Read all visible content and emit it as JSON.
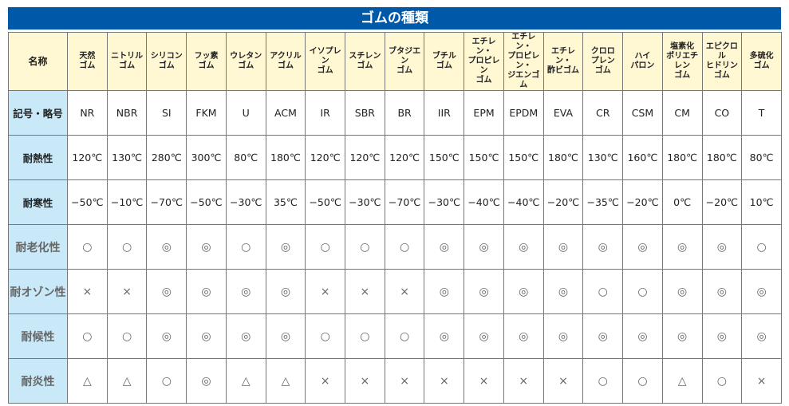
{
  "title": "ゴムの種類",
  "row_labels": [
    "名称",
    "記号・略号",
    "耐熱性",
    "耐寒性",
    "耐老化性",
    "耐オゾン性",
    "耐候性",
    "耐炎性"
  ],
  "names": [
    "天然\nゴム",
    "ニトリル\nゴム",
    "シリコン\nゴム",
    "フッ素\nゴム",
    "ウレタン\nゴム",
    "アクリル\nゴム",
    "イソプレン\nゴム",
    "スチレン\nゴム",
    "ブタジエン\nゴム",
    "ブチル\nゴム",
    "エチレン・\nプロピレン\nゴム",
    "エチレン・\nプロピレン・\nジエンゴム",
    "エチレン・\n酢ビゴム",
    "クロロ\nプレン\nゴム",
    "ハイ\nパロン",
    "塩素化\nポリエチレン\nゴム",
    "エピクロル\nヒドリン\nゴム",
    "多硫化\nゴム"
  ],
  "codes": [
    "NR",
    "NBR",
    "SI",
    "FKM",
    "U",
    "ACM",
    "IR",
    "SBR",
    "BR",
    "IIR",
    "EPM",
    "EPDM",
    "EVA",
    "CR",
    "CSM",
    "CM",
    "CO",
    "T"
  ],
  "heat": [
    "120℃",
    "130℃",
    "280℃",
    "300℃",
    "80℃",
    "180℃",
    "120℃",
    "120℃",
    "120℃",
    "150℃",
    "150℃",
    "150℃",
    "180℃",
    "130℃",
    "160℃",
    "180℃",
    "180℃",
    "80℃"
  ],
  "cold": [
    "−50℃",
    "−10℃",
    "−70℃",
    "−50℃",
    "−30℃",
    "35℃",
    "−50℃",
    "−30℃",
    "−70℃",
    "−30℃",
    "−40℃",
    "−40℃",
    "−20℃",
    "−35℃",
    "−20℃",
    "0℃",
    "−20℃",
    "10℃"
  ],
  "aging": [
    "○",
    "○",
    "◎",
    "◎",
    "○",
    "◎",
    "○",
    "○",
    "○",
    "◎",
    "◎",
    "◎",
    "◎",
    "◎",
    "◎",
    "◎",
    "◎",
    "○"
  ],
  "ozone": [
    "×",
    "×",
    "◎",
    "◎",
    "◎",
    "◎",
    "×",
    "×",
    "×",
    "◎",
    "◎",
    "◎",
    "◎",
    "○",
    "○",
    "◎",
    "◎",
    "◎"
  ],
  "weather": [
    "○",
    "○",
    "◎",
    "◎",
    "◎",
    "◎",
    "○",
    "○",
    "○",
    "◎",
    "◎",
    "◎",
    "◎",
    "◎",
    "◎",
    "◎",
    "◎",
    "◎"
  ],
  "flame": [
    "△",
    "△",
    "○",
    "◎",
    "△",
    "△",
    "×",
    "×",
    "×",
    "×",
    "×",
    "×",
    "×",
    "○",
    "○",
    "△",
    "○",
    "×"
  ],
  "colors": {
    "title_bg": "#0058a8",
    "label_bg": "#c9e9f9",
    "header_bg": "#fff8d3"
  }
}
